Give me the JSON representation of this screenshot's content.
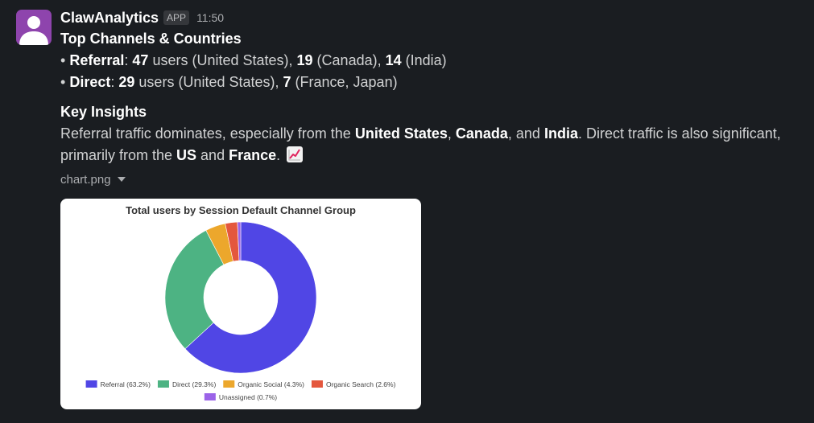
{
  "message": {
    "sender": "ClawAnalytics",
    "badge": "APP",
    "time": "11:50",
    "heading": "Top Channels & Countries",
    "bullets": [
      {
        "marker": "•",
        "channel": "Referral",
        "sep": ":",
        "v1": "47",
        "t1": " users (United States), ",
        "v2": "19",
        "t2": " (Canada), ",
        "v3": "14",
        "t3": " (India)"
      },
      {
        "marker": "•",
        "channel": "Direct",
        "sep": ":",
        "v1": "29",
        "t1": " users (United States), ",
        "v2": "7",
        "t2": " (France, Japan)"
      }
    ],
    "insights_heading": "Key Insights",
    "insights": {
      "p1": "Referral traffic dominates, especially from the ",
      "b1": "United States",
      "p2": ", ",
      "b2": "Canada",
      "p3": ", and ",
      "b3": "India",
      "p4": ". Direct traffic is also significant, primarily from the ",
      "b4": "US",
      "p5": " and ",
      "b5": "France",
      "p6": ". ",
      "emoji": "chart-increasing-icon"
    },
    "file_name": "chart.png"
  },
  "chart_data": {
    "type": "pie",
    "title": "Total users by Session Default Channel Group",
    "donut": true,
    "legend_position": "bottom",
    "slices": [
      {
        "label": "Referral (63.2%)",
        "value": 63.2,
        "color": "#5046e5"
      },
      {
        "label": "Direct (29.3%)",
        "value": 29.3,
        "color": "#4db383"
      },
      {
        "label": "Organic Social (4.3%)",
        "value": 4.3,
        "color": "#eca72c"
      },
      {
        "label": "Organic Search (2.6%)",
        "value": 2.6,
        "color": "#e4573d"
      },
      {
        "label": "Unassigned (0.7%)",
        "value": 0.7,
        "color": "#9b63e8"
      }
    ]
  },
  "colors": {
    "background": "#1a1d21",
    "avatar": "#8e44ad",
    "text": "#d1d2d3",
    "strong": "#ffffff",
    "muted": "#abadb0"
  }
}
